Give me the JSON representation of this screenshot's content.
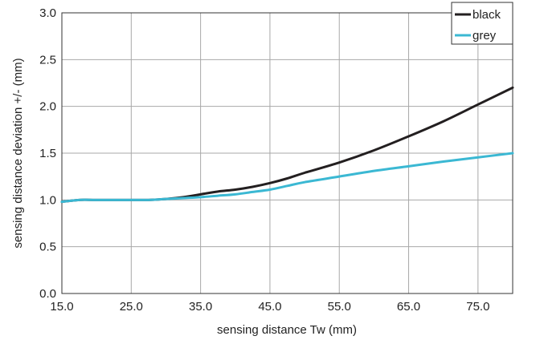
{
  "chart_data": {
    "type": "line",
    "title": "",
    "xlabel": "sensing distance Tw (mm)",
    "ylabel": "sensing distance deviation +/- (mm)",
    "xlim": [
      15,
      80
    ],
    "ylim": [
      0,
      3
    ],
    "x_ticks": [
      "15.0",
      "25.0",
      "35.0",
      "45.0",
      "55.0",
      "65.0",
      "75.0"
    ],
    "x_tick_values": [
      15,
      25,
      35,
      45,
      55,
      65,
      75
    ],
    "y_ticks": [
      "0.0",
      "0.5",
      "1.0",
      "1.5",
      "2.0",
      "2.5",
      "3.0"
    ],
    "y_tick_values": [
      0,
      0.5,
      1.0,
      1.5,
      2.0,
      2.5,
      3.0
    ],
    "grid": true,
    "legend_position": "top-right",
    "series": [
      {
        "name": "black",
        "color": "#231f20",
        "x": [
          15,
          17.5,
          20,
          25,
          27.5,
          30,
          32.5,
          35,
          37.5,
          40,
          42.5,
          45,
          47.5,
          50,
          55,
          60,
          65,
          70,
          75,
          80
        ],
        "y": [
          0.98,
          1.0,
          1.0,
          1.0,
          1.0,
          1.01,
          1.03,
          1.06,
          1.09,
          1.11,
          1.14,
          1.18,
          1.23,
          1.29,
          1.4,
          1.53,
          1.68,
          1.84,
          2.02,
          2.2
        ]
      },
      {
        "name": "grey",
        "color": "#3bb8d3",
        "x": [
          15,
          17.5,
          20,
          25,
          27.5,
          30,
          32.5,
          35,
          37.5,
          40,
          42.5,
          45,
          47.5,
          50,
          55,
          60,
          65,
          70,
          75,
          80
        ],
        "y": [
          0.98,
          1.0,
          1.0,
          1.0,
          1.0,
          1.01,
          1.02,
          1.03,
          1.045,
          1.06,
          1.085,
          1.11,
          1.15,
          1.19,
          1.25,
          1.31,
          1.36,
          1.41,
          1.455,
          1.5
        ]
      }
    ]
  }
}
